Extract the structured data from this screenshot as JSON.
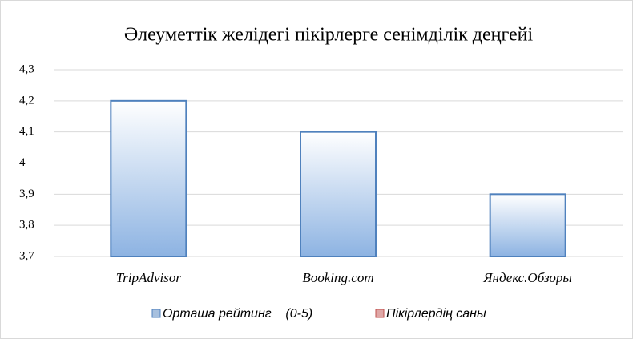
{
  "chart_data": {
    "type": "bar",
    "title": "Әлеуметтік желідегі пікірлерге сенімділік деңгейі",
    "categories": [
      "TripAdvisor",
      "Booking.com",
      "Яндекс.Обзоры"
    ],
    "series": [
      {
        "name": "Орташа рейтинг    (0-5)",
        "color": "#4f81bd",
        "values": [
          4.2,
          4.1,
          3.9
        ]
      },
      {
        "name": "Пікірлердің саны",
        "color": "#c0504d",
        "values": [
          null,
          null,
          null
        ]
      }
    ],
    "ylim": [
      3.7,
      4.3
    ],
    "yticks": [
      {
        "value": 3.7,
        "label": "3,7"
      },
      {
        "value": 3.8,
        "label": "3,8"
      },
      {
        "value": 3.9,
        "label": "3,9"
      },
      4,
      {
        "value": 4.1,
        "label": "4,1"
      },
      {
        "value": 4.2,
        "label": "4,2"
      },
      {
        "value": 4.3,
        "label": "4,3"
      }
    ],
    "grid": true,
    "legend": "bottom"
  }
}
